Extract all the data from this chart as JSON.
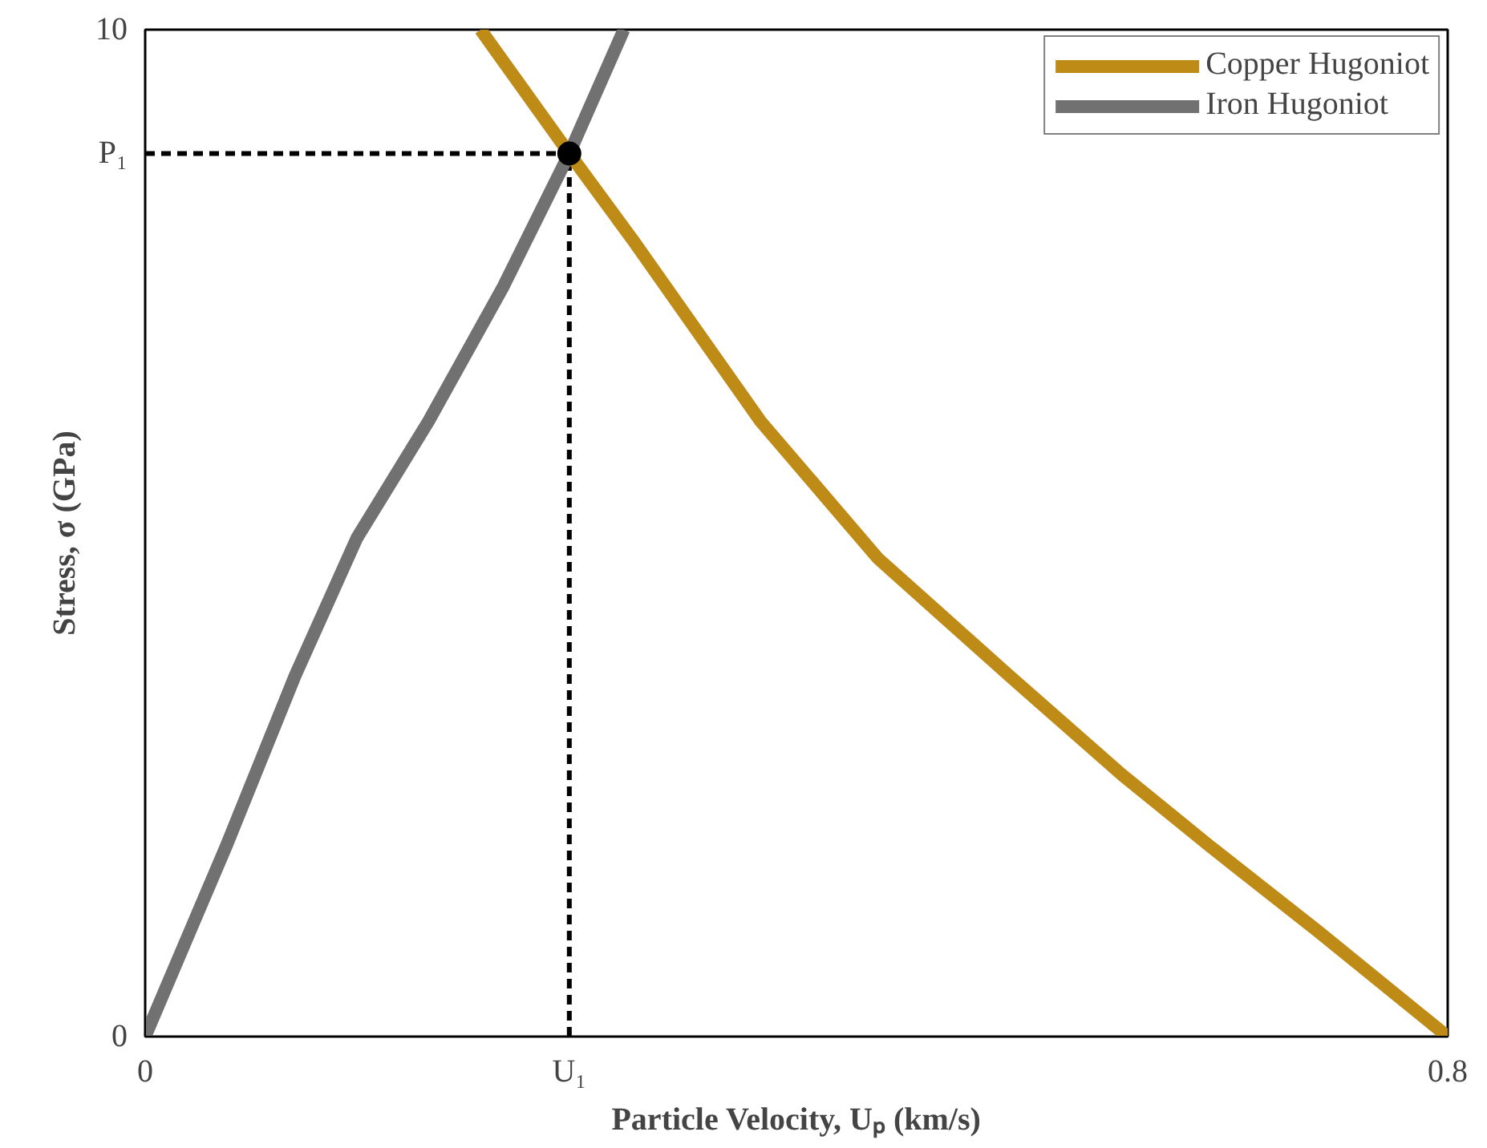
{
  "chart_data": {
    "type": "line",
    "xlabel": "Particle Velocity, Uₚ (km/s)",
    "ylabel": "Stress, σ (GPa)",
    "xlim": [
      0,
      0.8
    ],
    "ylim": [
      0,
      10
    ],
    "xticks": [
      0,
      {
        "value": 0.2605,
        "label": "U₁"
      },
      0.8
    ],
    "yticks": [
      0,
      {
        "value": 8.77,
        "label": "P₁"
      },
      10
    ],
    "grid": false,
    "legend": "top right",
    "line_style": "solid",
    "series": [
      {
        "name": "Copper Hugoniot",
        "color": "#bf8b17",
        "x": [
          0.206,
          0.2605,
          0.3,
          0.378,
          0.45,
          0.531,
          0.6,
          0.654,
          0.72,
          0.8
        ],
        "values": [
          10,
          8.77,
          7.9,
          6.11,
          4.75,
          3.58,
          2.6,
          1.89,
          1.05,
          0
        ]
      },
      {
        "name": "Iron Hugoniot",
        "color": "#717171",
        "x": [
          0,
          0.05,
          0.092,
          0.13,
          0.174,
          0.22,
          0.2605,
          0.294
        ],
        "values": [
          0,
          1.9,
          3.58,
          4.95,
          6.11,
          7.45,
          8.77,
          10
        ]
      },
      {
        "type": "scatter",
        "marker": "circle",
        "color": "#000000",
        "x": [
          0.2605
        ],
        "values": [
          8.77
        ]
      }
    ],
    "ref_lines": [
      {
        "axis": "x",
        "value": 0.2605,
        "color": "#000000",
        "line_style": "dashed"
      },
      {
        "axis": "y",
        "value": 8.77,
        "color": "#000000",
        "line_style": "dashed"
      }
    ]
  }
}
